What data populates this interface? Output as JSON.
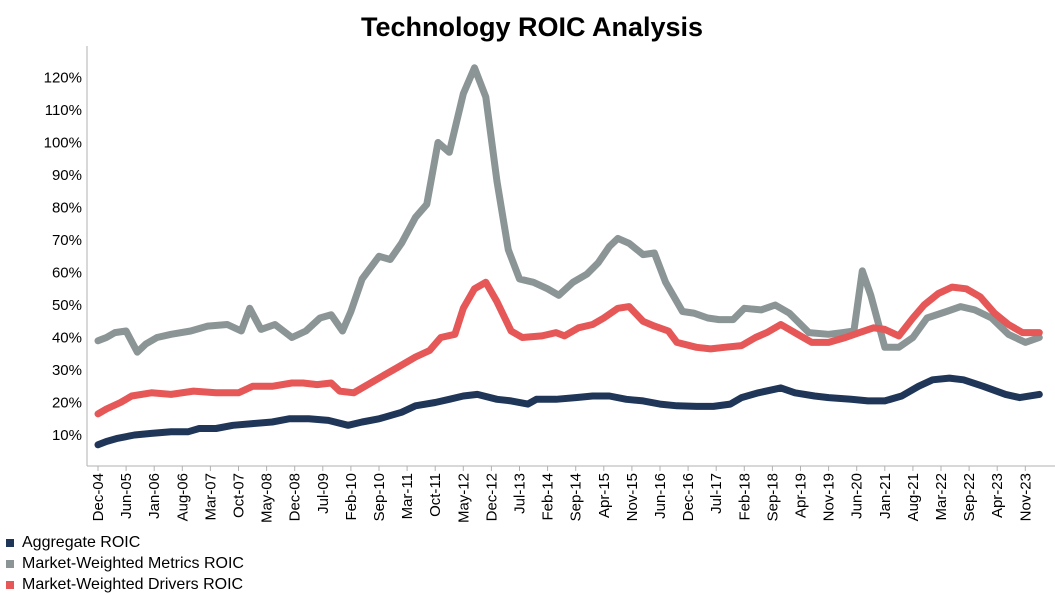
{
  "chart_data": {
    "type": "line",
    "title": "Technology ROIC Analysis",
    "xlabel": "",
    "ylabel": "",
    "ylim": [
      0,
      130
    ],
    "y_ticks": [
      "10%",
      "20%",
      "30%",
      "40%",
      "50%",
      "60%",
      "70%",
      "80%",
      "90%",
      "100%",
      "110%",
      "120%"
    ],
    "grid": false,
    "legend_position": "bottom-left",
    "x_tick_labels": [
      "Dec-04",
      "Jun-05",
      "Jan-06",
      "Aug-06",
      "Mar-07",
      "Oct-07",
      "May-08",
      "Dec-08",
      "Jul-09",
      "Feb-10",
      "Sep-10",
      "Mar-11",
      "Oct-11",
      "May-12",
      "Dec-12",
      "Jul-13",
      "Feb-14",
      "Sep-14",
      "Apr-15",
      "Nov-15",
      "Jun-16",
      "Dec-16",
      "Jul-17",
      "Feb-18",
      "Sep-18",
      "Apr-19",
      "Nov-19",
      "Jun-20",
      "Jan-21",
      "Aug-21",
      "Mar-22",
      "Sep-22",
      "Apr-23",
      "Nov-23"
    ],
    "series": [
      {
        "name": "Aggregate ROIC",
        "color": "#1f3658",
        "points": [
          [
            0,
            7
          ],
          [
            0.3,
            8
          ],
          [
            0.7,
            9
          ],
          [
            1.3,
            10
          ],
          [
            1.9,
            10.5
          ],
          [
            2.6,
            11
          ],
          [
            3.2,
            11
          ],
          [
            3.6,
            12
          ],
          [
            4.2,
            12
          ],
          [
            4.8,
            13
          ],
          [
            5.5,
            13.5
          ],
          [
            6.2,
            14
          ],
          [
            6.8,
            15
          ],
          [
            7.5,
            15
          ],
          [
            8.2,
            14.5
          ],
          [
            8.9,
            13
          ],
          [
            9.4,
            14
          ],
          [
            10,
            15
          ],
          [
            10.8,
            17
          ],
          [
            11.3,
            19
          ],
          [
            12,
            20
          ],
          [
            12.5,
            21
          ],
          [
            13,
            22
          ],
          [
            13.5,
            22.5
          ],
          [
            14.2,
            21
          ],
          [
            14.7,
            20.5
          ],
          [
            15.3,
            19.5
          ],
          [
            15.6,
            21
          ],
          [
            16.3,
            21
          ],
          [
            17,
            21.5
          ],
          [
            17.6,
            22
          ],
          [
            18.2,
            22
          ],
          [
            18.8,
            21
          ],
          [
            19.4,
            20.5
          ],
          [
            20,
            19.5
          ],
          [
            20.6,
            19
          ],
          [
            21.3,
            18.8
          ],
          [
            21.9,
            18.8
          ],
          [
            22.5,
            19.5
          ],
          [
            22.9,
            21.5
          ],
          [
            23.5,
            23
          ],
          [
            24.3,
            24.5
          ],
          [
            24.8,
            23
          ],
          [
            25.5,
            22
          ],
          [
            26,
            21.5
          ],
          [
            26.8,
            21
          ],
          [
            27.4,
            20.5
          ],
          [
            28,
            20.5
          ],
          [
            28.6,
            22
          ],
          [
            29.2,
            25
          ],
          [
            29.7,
            27
          ],
          [
            30.3,
            27.5
          ],
          [
            30.8,
            27
          ],
          [
            31.5,
            25
          ],
          [
            32.3,
            22.5
          ],
          [
            32.8,
            21.5
          ],
          [
            33.5,
            22.5
          ]
        ]
      },
      {
        "name": "Market-Weighted Metrics ROIC",
        "color": "#8b9596",
        "points": [
          [
            0,
            39
          ],
          [
            0.3,
            40
          ],
          [
            0.6,
            41.5
          ],
          [
            1,
            42
          ],
          [
            1.4,
            35.5
          ],
          [
            1.7,
            38
          ],
          [
            2.1,
            40
          ],
          [
            2.6,
            41
          ],
          [
            3.3,
            42
          ],
          [
            3.9,
            43.5
          ],
          [
            4.6,
            44
          ],
          [
            5.1,
            42
          ],
          [
            5.4,
            49
          ],
          [
            5.8,
            42.5
          ],
          [
            6.3,
            44
          ],
          [
            6.9,
            40
          ],
          [
            7.4,
            42
          ],
          [
            7.9,
            46
          ],
          [
            8.3,
            47
          ],
          [
            8.7,
            42
          ],
          [
            9,
            48
          ],
          [
            9.4,
            58
          ],
          [
            10,
            65
          ],
          [
            10.4,
            64
          ],
          [
            10.8,
            69
          ],
          [
            11.3,
            77
          ],
          [
            11.7,
            81
          ],
          [
            12.1,
            100
          ],
          [
            12.5,
            97
          ],
          [
            13,
            115
          ],
          [
            13.4,
            123
          ],
          [
            13.8,
            114
          ],
          [
            14.2,
            88
          ],
          [
            14.6,
            67
          ],
          [
            15,
            58
          ],
          [
            15.5,
            57
          ],
          [
            16,
            55
          ],
          [
            16.4,
            53
          ],
          [
            16.9,
            57
          ],
          [
            17.4,
            59.5
          ],
          [
            17.8,
            63
          ],
          [
            18.2,
            68
          ],
          [
            18.5,
            70.5
          ],
          [
            18.9,
            69
          ],
          [
            19.4,
            65.5
          ],
          [
            19.8,
            66
          ],
          [
            20.2,
            57
          ],
          [
            20.8,
            48
          ],
          [
            21.2,
            47.5
          ],
          [
            21.7,
            46
          ],
          [
            22.1,
            45.5
          ],
          [
            22.6,
            45.5
          ],
          [
            23,
            49
          ],
          [
            23.6,
            48.5
          ],
          [
            24.1,
            50
          ],
          [
            24.6,
            47.5
          ],
          [
            25.3,
            41.5
          ],
          [
            26,
            41
          ],
          [
            26.5,
            41.5
          ],
          [
            26.9,
            42
          ],
          [
            27.2,
            60.5
          ],
          [
            27.5,
            53
          ],
          [
            28,
            37
          ],
          [
            28.5,
            37
          ],
          [
            29,
            40
          ],
          [
            29.5,
            46
          ],
          [
            30.2,
            48
          ],
          [
            30.7,
            49.5
          ],
          [
            31.2,
            48.5
          ],
          [
            31.8,
            46
          ],
          [
            32.4,
            41
          ],
          [
            33,
            38.5
          ],
          [
            33.5,
            40
          ]
        ]
      },
      {
        "name": "Market-Weighted Drivers ROIC",
        "color": "#e65757",
        "points": [
          [
            0,
            16.5
          ],
          [
            0.3,
            18
          ],
          [
            0.8,
            20
          ],
          [
            1.2,
            22
          ],
          [
            1.9,
            23
          ],
          [
            2.6,
            22.5
          ],
          [
            3.4,
            23.5
          ],
          [
            4.2,
            23
          ],
          [
            5,
            23
          ],
          [
            5.5,
            25
          ],
          [
            6.2,
            25
          ],
          [
            6.9,
            26
          ],
          [
            7.3,
            26
          ],
          [
            7.8,
            25.5
          ],
          [
            8.3,
            26
          ],
          [
            8.6,
            23.5
          ],
          [
            9.1,
            23
          ],
          [
            9.5,
            25
          ],
          [
            10.1,
            28
          ],
          [
            10.7,
            31
          ],
          [
            11.3,
            34
          ],
          [
            11.8,
            36
          ],
          [
            12.2,
            40
          ],
          [
            12.7,
            41
          ],
          [
            13,
            49
          ],
          [
            13.4,
            55
          ],
          [
            13.8,
            57
          ],
          [
            14.2,
            51
          ],
          [
            14.7,
            42
          ],
          [
            15.1,
            40
          ],
          [
            15.8,
            40.5
          ],
          [
            16.3,
            41.5
          ],
          [
            16.6,
            40.5
          ],
          [
            17.1,
            43
          ],
          [
            17.6,
            44
          ],
          [
            18,
            46
          ],
          [
            18.5,
            49
          ],
          [
            18.9,
            49.5
          ],
          [
            19.4,
            45
          ],
          [
            19.8,
            43.5
          ],
          [
            20.3,
            42
          ],
          [
            20.6,
            38.5
          ],
          [
            21.3,
            37
          ],
          [
            21.8,
            36.5
          ],
          [
            22.3,
            37
          ],
          [
            22.9,
            37.5
          ],
          [
            23.4,
            40
          ],
          [
            23.8,
            41.5
          ],
          [
            24.3,
            44
          ],
          [
            24.9,
            41
          ],
          [
            25.4,
            38.5
          ],
          [
            26,
            38.5
          ],
          [
            26.6,
            40
          ],
          [
            27.1,
            41.5
          ],
          [
            27.6,
            43
          ],
          [
            28,
            42.5
          ],
          [
            28.5,
            40.5
          ],
          [
            29,
            46
          ],
          [
            29.4,
            50
          ],
          [
            29.9,
            53.5
          ],
          [
            30.4,
            55.5
          ],
          [
            30.9,
            55
          ],
          [
            31.4,
            52.5
          ],
          [
            31.9,
            47.5
          ],
          [
            32.4,
            44
          ],
          [
            32.9,
            41.5
          ],
          [
            33.5,
            41.5
          ]
        ]
      }
    ]
  }
}
